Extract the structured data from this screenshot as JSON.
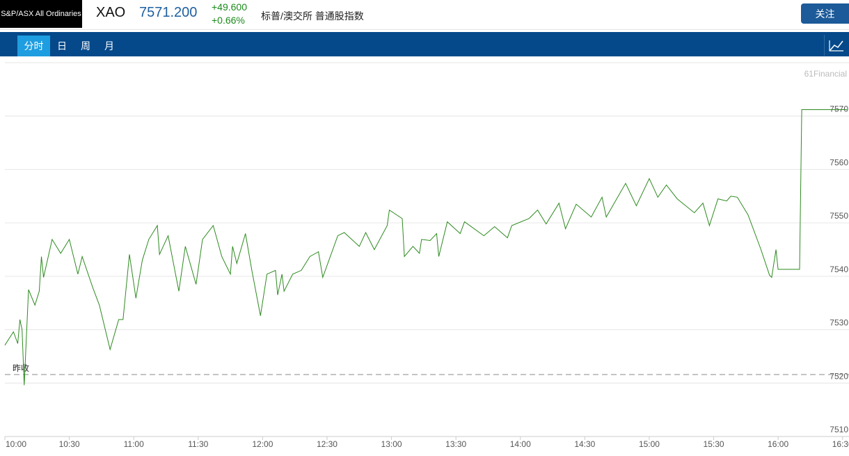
{
  "header": {
    "badge": "S&P/ASX All Ordinaries",
    "symbol": "XAO",
    "price": "7571.200",
    "change": "+49.600",
    "change_pct": "+0.66%",
    "name": "标普/澳交所 普通股指数",
    "follow_button": "关注"
  },
  "tabs": [
    "分时",
    "日",
    "周",
    "月"
  ],
  "watermark": "61Financial",
  "chart_data": {
    "type": "line",
    "x": [
      "10:00",
      "10:04",
      "10:06",
      "10:07",
      "10:08",
      "10:09",
      "10:11",
      "10:14",
      "10:16",
      "10:17",
      "10:18",
      "10:22",
      "10:26",
      "10:30",
      "10:34",
      "10:36",
      "10:41",
      "10:44",
      "10:49",
      "10:53",
      "10:55",
      "10:58",
      "11:01",
      "11:04",
      "11:07",
      "11:11",
      "11:12",
      "11:16",
      "11:21",
      "11:24",
      "11:29",
      "11:32",
      "11:37",
      "11:41",
      "11:45",
      "11:46",
      "11:48",
      "11:52",
      "11:55",
      "11:59",
      "12:02",
      "12:06",
      "12:07",
      "12:09",
      "12:10",
      "12:14",
      "12:18",
      "12:22",
      "12:26",
      "12:28",
      "12:35",
      "12:38",
      "12:45",
      "12:48",
      "12:52",
      "12:58",
      "12:59",
      "13:05",
      "13:06",
      "13:10",
      "13:13",
      "13:14",
      "13:18",
      "13:21",
      "13:22",
      "13:26",
      "13:32",
      "13:34",
      "13:43",
      "13:48",
      "13:54",
      "13:56",
      "14:04",
      "14:08",
      "14:12",
      "14:18",
      "14:21",
      "14:26",
      "14:33",
      "14:38",
      "14:40",
      "14:49",
      "14:54",
      "15:00",
      "15:04",
      "15:08",
      "15:13",
      "15:21",
      "15:25",
      "15:28",
      "15:32",
      "15:36",
      "15:38",
      "15:41",
      "15:46",
      "15:52",
      "15:56",
      "15:57",
      "15:59",
      "16:00",
      "16:10",
      "16:11",
      "16:32"
    ],
    "values": [
      7527.1,
      7529.6,
      7527.4,
      7531.9,
      7530.0,
      7519.6,
      7537.5,
      7534.6,
      7537.2,
      7543.7,
      7539.8,
      7546.9,
      7544.3,
      7546.9,
      7540.4,
      7543.7,
      7537.8,
      7534.6,
      7526.3,
      7531.9,
      7531.9,
      7544.1,
      7535.9,
      7543.0,
      7546.9,
      7549.5,
      7544.1,
      7547.6,
      7537.2,
      7545.6,
      7538.5,
      7546.9,
      7549.5,
      7543.7,
      7540.4,
      7545.6,
      7542.4,
      7548.0,
      7541.1,
      7532.6,
      7540.4,
      7541.1,
      7536.5,
      7540.4,
      7537.2,
      7540.4,
      7541.1,
      7543.7,
      7544.6,
      7539.8,
      7547.6,
      7548.2,
      7545.6,
      7548.2,
      7545.0,
      7549.5,
      7552.4,
      7550.8,
      7543.7,
      7545.6,
      7544.3,
      7546.9,
      7546.7,
      7548.0,
      7543.7,
      7550.2,
      7548.0,
      7550.2,
      7547.6,
      7549.3,
      7547.2,
      7549.5,
      7550.8,
      7552.4,
      7549.8,
      7553.7,
      7548.9,
      7553.5,
      7551.1,
      7554.8,
      7551.1,
      7557.4,
      7553.2,
      7558.3,
      7554.8,
      7557.1,
      7554.5,
      7551.9,
      7553.7,
      7549.5,
      7554.5,
      7554.1,
      7555.0,
      7554.8,
      7551.5,
      7545.0,
      7540.2,
      7539.8,
      7545.0,
      7541.3,
      7541.3,
      7571.2,
      7571.2
    ],
    "color": "#2d8a1f",
    "xlim": [
      "10:00",
      "16:33"
    ],
    "xticks": [
      "10:00",
      "10:30",
      "11:00",
      "11:30",
      "12:00",
      "12:30",
      "13:00",
      "13:30",
      "14:00",
      "14:30",
      "15:00",
      "15:30",
      "16:00",
      "16:30"
    ],
    "ylim": [
      7510,
      7580
    ],
    "yticks": [
      7510,
      7520,
      7530,
      7540,
      7550,
      7560,
      7570
    ],
    "grid": true,
    "reference_line": {
      "label": "昨收",
      "value": 7521.6
    }
  }
}
